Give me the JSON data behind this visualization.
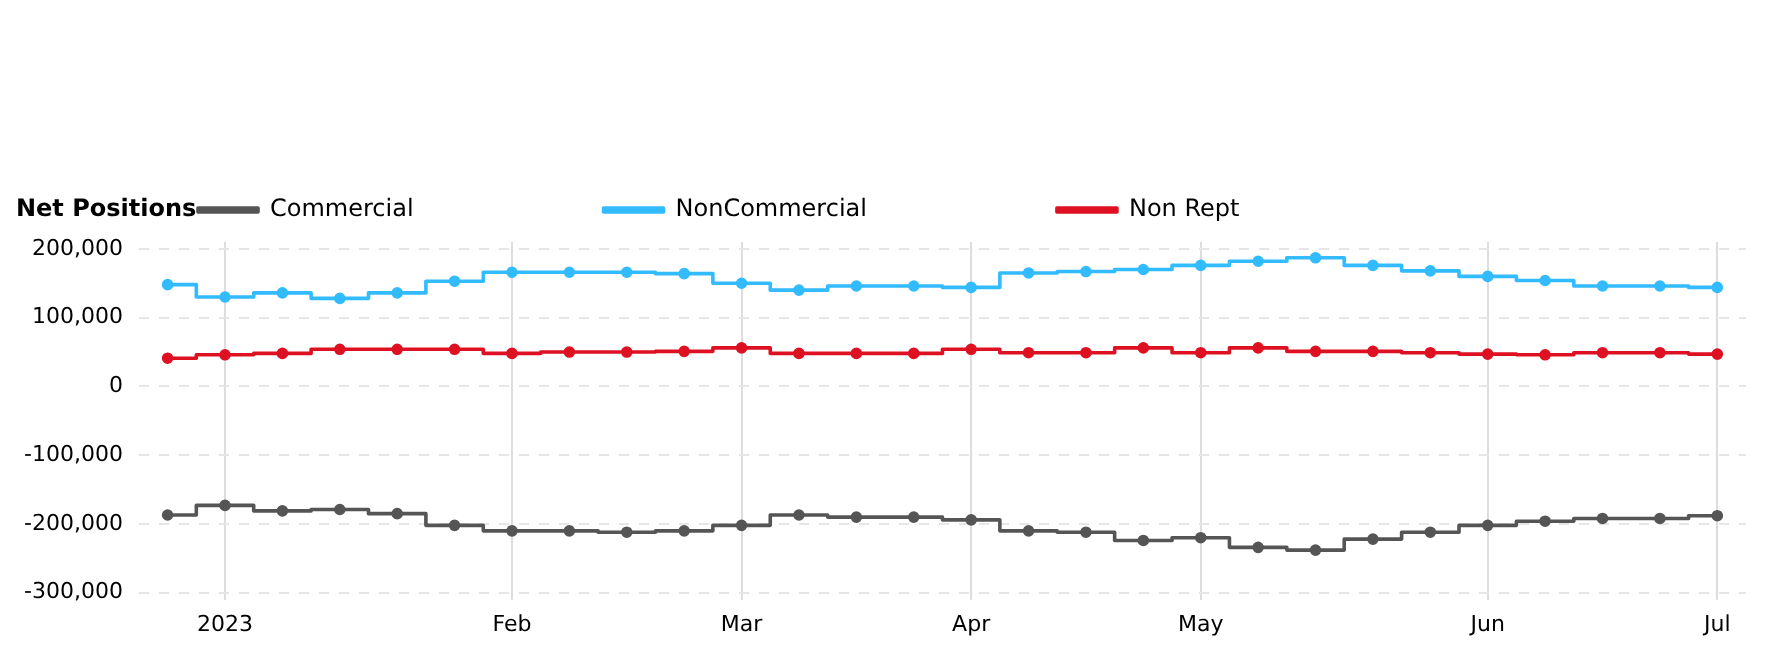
{
  "chart_data": {
    "type": "step",
    "legend_title": "Net Positions",
    "legend": "top",
    "grid": true,
    "marker": "circle",
    "line_style": "solid",
    "categories": [
      null,
      "2023",
      null,
      null,
      null,
      null,
      "Feb",
      null,
      null,
      null,
      "Mar",
      null,
      null,
      null,
      "Apr",
      null,
      null,
      null,
      "May",
      null,
      null,
      null,
      null,
      "Jun",
      null,
      null,
      null,
      "Jul"
    ],
    "ylim": [
      -310000,
      210000
    ],
    "yticks": [
      {
        "value": -300000,
        "label": "-300,000"
      },
      {
        "value": -200000,
        "label": "-200,000"
      },
      {
        "value": -100000,
        "label": "-100,000"
      },
      0,
      {
        "value": 100000,
        "label": "100,000"
      },
      {
        "value": 200000,
        "label": "200,000"
      }
    ],
    "series": [
      {
        "name": "Commercial",
        "color": "#555555",
        "values": [
          -187000,
          -173000,
          -181000,
          -179000,
          -185000,
          -202000,
          -210000,
          -210000,
          -212000,
          -210000,
          -202000,
          -187000,
          -190000,
          -190000,
          -194000,
          -210000,
          -212000,
          -224000,
          -220000,
          -234000,
          -238000,
          -222000,
          -212000,
          -202000,
          -196000,
          -192000,
          -192000,
          -188000
        ]
      },
      {
        "name": "NonCommercial",
        "color": "#33bbff",
        "values": [
          148000,
          130000,
          136000,
          128000,
          136000,
          153000,
          166000,
          166000,
          166000,
          164000,
          150000,
          140000,
          146000,
          146000,
          144000,
          165000,
          167000,
          170000,
          176000,
          182000,
          187000,
          176000,
          168000,
          160000,
          154000,
          146000,
          146000,
          144000
        ]
      },
      {
        "name": "Non Rept",
        "color": "#dd1122",
        "values": [
          41000,
          46000,
          48000,
          54000,
          54000,
          54000,
          48000,
          50000,
          50000,
          51000,
          56000,
          48000,
          48000,
          48000,
          54000,
          49000,
          49000,
          56000,
          49000,
          56000,
          51000,
          51000,
          49000,
          47000,
          46000,
          49000,
          49000,
          47000
        ]
      }
    ]
  }
}
